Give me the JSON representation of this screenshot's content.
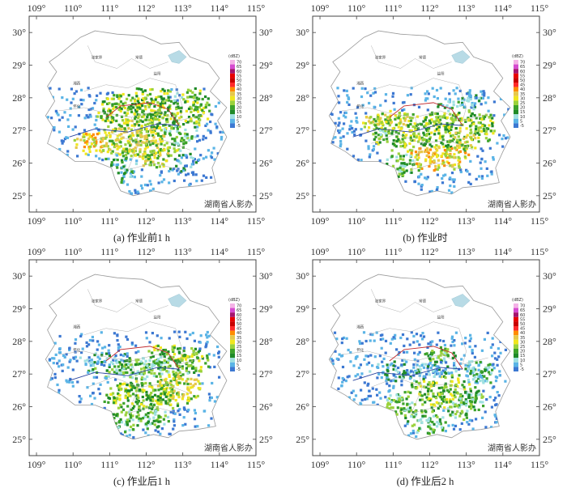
{
  "x_ticks": [
    "109°",
    "110°",
    "111°",
    "112°",
    "113°",
    "114°",
    "115°"
  ],
  "y_ticks": [
    "30°",
    "29°",
    "28°",
    "27°",
    "26°",
    "25°"
  ],
  "credit": "湖南省人影办",
  "legend": {
    "unit": "(dBZ)",
    "levels": [
      "70",
      "65",
      "60",
      "55",
      "50",
      "45",
      "40",
      "35",
      "30",
      "25",
      "20",
      "15",
      "10",
      "5",
      "-5"
    ],
    "colors": [
      "#f4b2e6",
      "#d64bd0",
      "#a4146e",
      "#e80000",
      "#c80000",
      "#ff2a2a",
      "#ff8c00",
      "#e6c84a",
      "#f0e61e",
      "#9ad23c",
      "#3ca22a",
      "#1e8a28",
      "#9ee0e0",
      "#5ab4e6",
      "#3c78d2"
    ]
  },
  "cities": [
    "张家界",
    "常德",
    "湘西",
    "怀化",
    "益阳"
  ],
  "panels": [
    {
      "caption": "(a) 作业前1 h",
      "state": "before-1h"
    },
    {
      "caption": "(b) 作业时",
      "state": "during"
    },
    {
      "caption": "(c) 作业后1 h",
      "state": "after-1h"
    },
    {
      "caption": "(d) 作业后2 h",
      "state": "after-2h"
    }
  ]
}
